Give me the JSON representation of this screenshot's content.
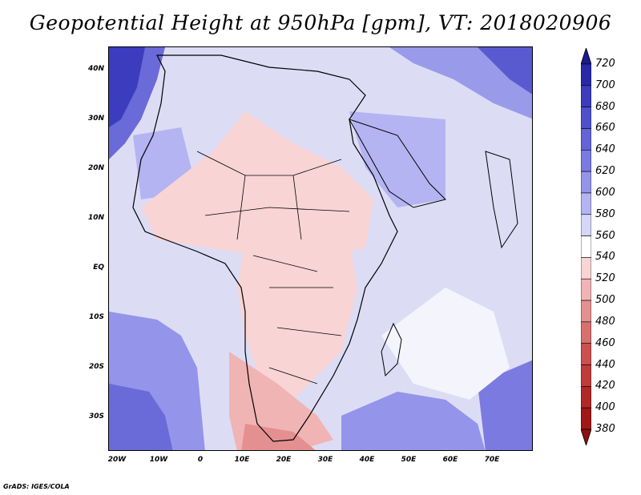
{
  "title": "Geopotential Height at 950hPa [gpm], VT: 2018020906",
  "map": {
    "latitude_labels": [
      "40N",
      "30N",
      "20N",
      "10N",
      "EQ",
      "10S",
      "20S",
      "30S"
    ],
    "longitude_labels": [
      "20W",
      "10W",
      "0",
      "10E",
      "20E",
      "30E",
      "40E",
      "50E",
      "60E",
      "70E"
    ]
  },
  "colorbar": {
    "levels": [
      "720",
      "700",
      "680",
      "660",
      "640",
      "620",
      "600",
      "580",
      "560",
      "540",
      "520",
      "500",
      "480",
      "460",
      "440",
      "420",
      "400",
      "380"
    ],
    "colors": [
      "#1a1a8c",
      "#2828a8",
      "#3c3cbe",
      "#5050cc",
      "#6464d6",
      "#7a7ae0",
      "#9494ea",
      "#b4b4f2",
      "#d6d6f8",
      "#ffffff",
      "#f8d4d4",
      "#f0b4b4",
      "#e49090",
      "#d87070",
      "#cc5050",
      "#c03c3c",
      "#b02828",
      "#a01818",
      "#8c1010"
    ]
  },
  "credit": "GrADS: IGES/COLA"
}
